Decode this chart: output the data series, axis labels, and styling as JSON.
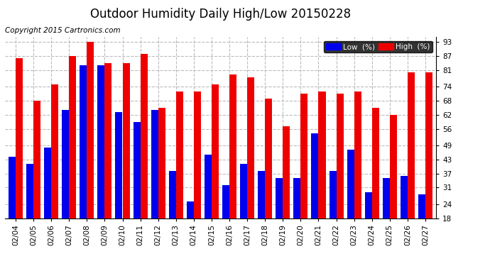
{
  "title": "Outdoor Humidity Daily High/Low 20150228",
  "copyright": "Copyright 2015 Cartronics.com",
  "dates": [
    "02/04",
    "02/05",
    "02/06",
    "02/07",
    "02/08",
    "02/09",
    "02/10",
    "02/11",
    "02/12",
    "02/13",
    "02/14",
    "02/15",
    "02/16",
    "02/17",
    "02/18",
    "02/19",
    "02/20",
    "02/21",
    "02/22",
    "02/23",
    "02/24",
    "02/25",
    "02/26",
    "02/27"
  ],
  "high": [
    86,
    68,
    75,
    87,
    93,
    84,
    84,
    88,
    65,
    72,
    72,
    75,
    79,
    78,
    69,
    57,
    71,
    72,
    71,
    72,
    65,
    62,
    80,
    80
  ],
  "low": [
    44,
    41,
    48,
    64,
    83,
    83,
    63,
    59,
    64,
    38,
    25,
    45,
    32,
    41,
    38,
    35,
    35,
    54,
    38,
    47,
    29,
    35,
    36,
    28
  ],
  "low_color": "#0000ee",
  "high_color": "#ee0000",
  "bg_color": "#ffffff",
  "plot_bg_color": "#ffffff",
  "grid_color": "#bbbbbb",
  "ylim": [
    18,
    95
  ],
  "yticks": [
    18,
    24,
    31,
    37,
    43,
    49,
    56,
    62,
    68,
    74,
    81,
    87,
    93
  ],
  "bar_width": 0.4,
  "legend_low_label": "Low  (%)",
  "legend_high_label": "High  (%)",
  "title_fontsize": 12,
  "tick_fontsize": 7.5,
  "copyright_fontsize": 7.5
}
